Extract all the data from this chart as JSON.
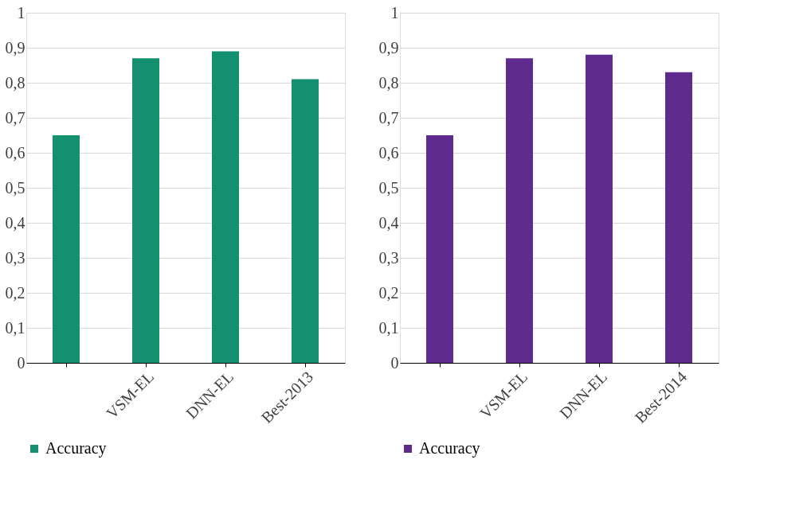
{
  "chart_data": [
    {
      "type": "bar",
      "categories": [
        null,
        "VSM-EL",
        "DNN-EL",
        "Best-2013"
      ],
      "series": [
        {
          "name": "Accuracy",
          "color": "#12906f",
          "values": [
            0.65,
            0.87,
            0.89,
            0.81
          ]
        }
      ],
      "ylim": [
        0,
        1
      ],
      "yticks": [
        0,
        {
          "value": 0.1,
          "label": "0,1"
        },
        {
          "value": 0.2,
          "label": "0,2"
        },
        {
          "value": 0.3,
          "label": "0,3"
        },
        {
          "value": 0.4,
          "label": "0,4"
        },
        {
          "value": 0.5,
          "label": "0,5"
        },
        {
          "value": 0.6,
          "label": "0,6"
        },
        {
          "value": 0.7,
          "label": "0,7"
        },
        {
          "value": 0.8,
          "label": "0,8"
        },
        {
          "value": 0.9,
          "label": "0,9"
        },
        1
      ],
      "grid": "y",
      "legend": "bottom"
    },
    {
      "type": "bar",
      "categories": [
        null,
        "VSM-EL",
        "DNN-EL",
        "Best-2014"
      ],
      "series": [
        {
          "name": "Accuracy",
          "color": "#5e2a8e",
          "values": [
            0.65,
            0.87,
            0.88,
            0.83
          ]
        }
      ],
      "ylim": [
        0,
        1
      ],
      "yticks": [
        0,
        {
          "value": 0.1,
          "label": "0,1"
        },
        {
          "value": 0.2,
          "label": "0,2"
        },
        {
          "value": 0.3,
          "label": "0,3"
        },
        {
          "value": 0.4,
          "label": "0,4"
        },
        {
          "value": 0.5,
          "label": "0,5"
        },
        {
          "value": 0.6,
          "label": "0,6"
        },
        {
          "value": 0.7,
          "label": "0,7"
        },
        {
          "value": 0.8,
          "label": "0,8"
        },
        {
          "value": 0.9,
          "label": "0,9"
        },
        1
      ],
      "grid": "y",
      "legend": "bottom"
    }
  ]
}
